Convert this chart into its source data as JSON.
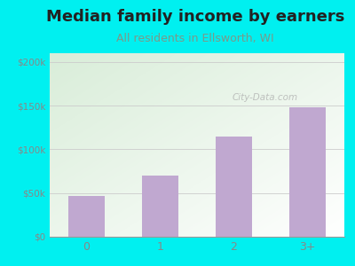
{
  "title": "Median family income by earners",
  "subtitle": "All residents in Ellsworth, WI",
  "categories": [
    "0",
    "1",
    "2",
    "3+"
  ],
  "values": [
    47000,
    70000,
    115000,
    148000
  ],
  "bar_color": "#c0a8d0",
  "background_color": "#00f0f0",
  "plot_bg_topleft": "#d8edd8",
  "plot_bg_bottomright": "#f8ffff",
  "yticks": [
    0,
    50000,
    100000,
    150000,
    200000
  ],
  "ytick_labels": [
    "$0",
    "$50k",
    "$100k",
    "$150k",
    "$200k"
  ],
  "ylim": [
    0,
    210000
  ],
  "title_fontsize": 13,
  "subtitle_fontsize": 9,
  "subtitle_color": "#7a9a8a",
  "tick_color": "#888888",
  "watermark": "City-Data.com",
  "grid_color": "#cccccc"
}
